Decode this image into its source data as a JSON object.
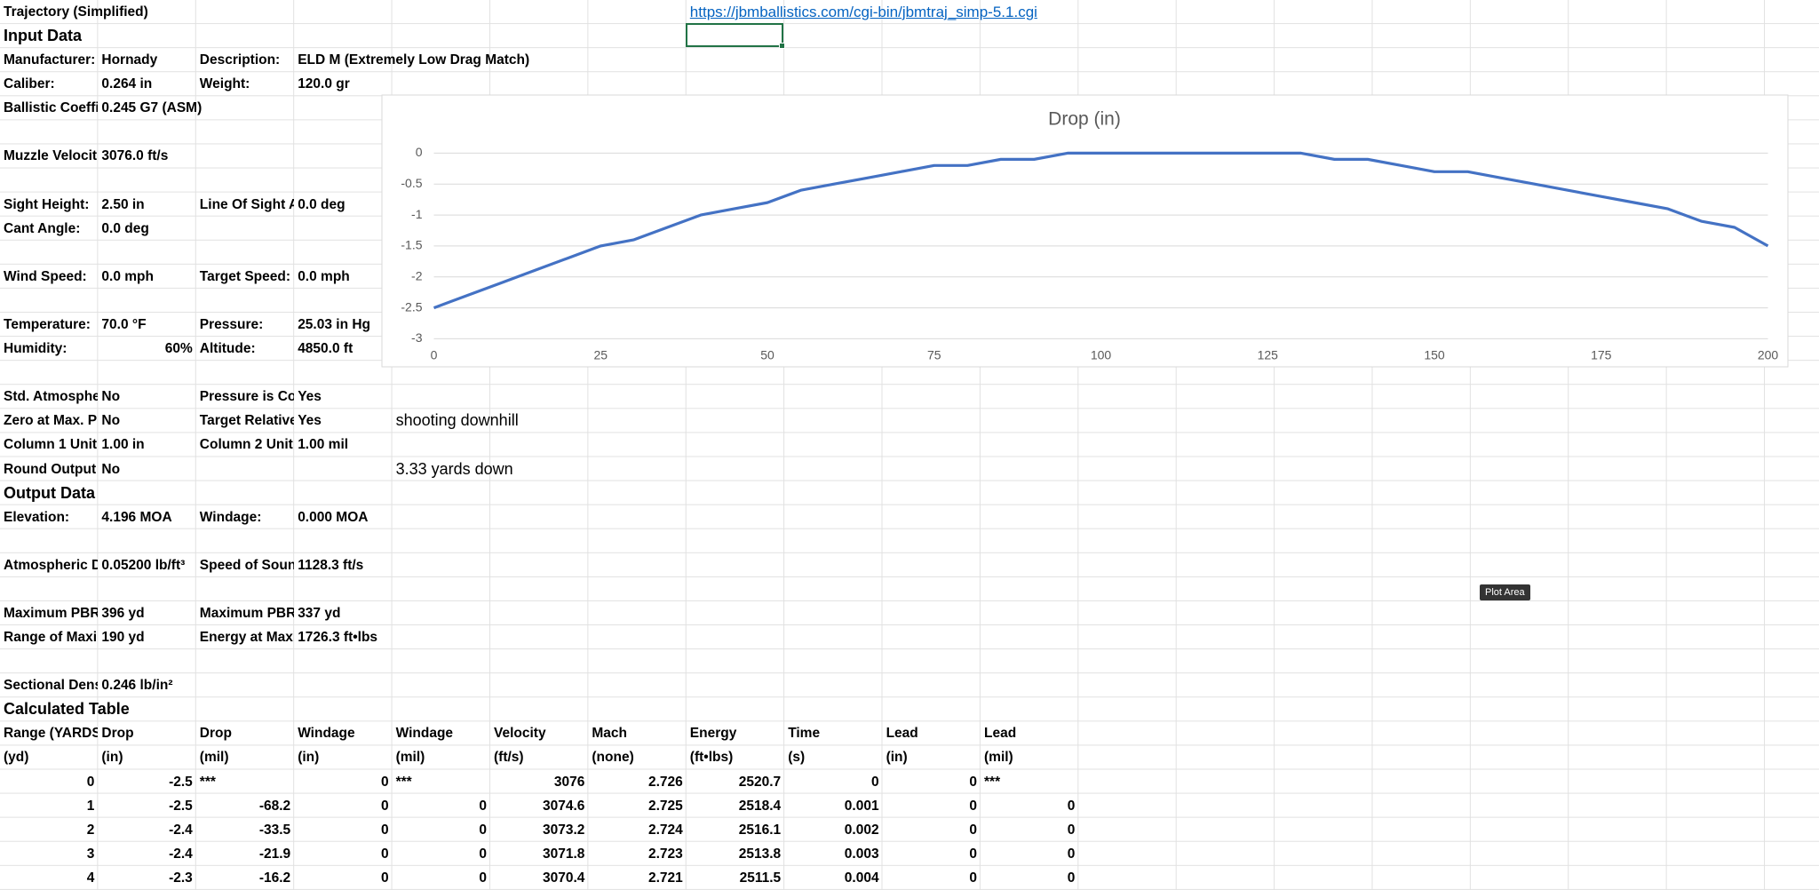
{
  "sheet": {
    "rows": [
      [
        "Trajectory (Simplified)",
        null,
        null,
        null,
        null,
        null,
        null,
        "https://jbmballistics.com/cgi-bin/jbmtraj_simp-5.1.cgi"
      ],
      [
        "Input Data"
      ],
      [
        "Manufacturer:",
        "Hornady",
        "Description:",
        "ELD M (Extremely Low Drag Match)"
      ],
      [
        "Caliber:",
        "0.264 in",
        "Weight:",
        "120.0 gr"
      ],
      [
        "Ballistic Coeffi",
        "0.245 G7 (ASM)"
      ],
      [],
      [
        "Muzzle Velocit",
        "3076.0 ft/s"
      ],
      [],
      [
        "Sight Height:",
        "2.50 in",
        "Line Of Sight A",
        "0.0 deg"
      ],
      [
        "Cant Angle:",
        "0.0 deg"
      ],
      [],
      [
        "Wind Speed:",
        "0.0 mph",
        "Target Speed:",
        "0.0 mph"
      ],
      [],
      [
        "Temperature:",
        "70.0 °F",
        "Pressure:",
        "25.03 in Hg"
      ],
      [
        "Humidity:",
        "60%",
        "Altitude:",
        "4850.0 ft"
      ],
      [],
      [
        "Std. Atmosphe",
        "No",
        "Pressure is Co",
        "Yes"
      ],
      [
        "Zero at Max. P",
        "No",
        "Target Relative",
        "Yes",
        "shooting downhill"
      ],
      [
        "Column 1 Unit",
        "1.00 in",
        "Column 2 Unit",
        "1.00 mil"
      ],
      [
        "Round Output",
        "No",
        null,
        null,
        "3.33 yards down"
      ],
      [
        "Output Data"
      ],
      [
        "Elevation:",
        "4.196 MOA",
        "Windage:",
        "0.000 MOA"
      ],
      [],
      [
        "Atmospheric D",
        "0.05200 lb/ft³",
        "Speed of Soun",
        "1128.3 ft/s"
      ],
      [],
      [
        "Maximum PBR",
        "396 yd",
        "Maximum PBR",
        "337 yd"
      ],
      [
        "Range of Maxi",
        "190 yd",
        "Energy at Maxi",
        "1726.3 ft•lbs"
      ],
      [],
      [
        "Sectional Dens",
        "0.246 lb/in²"
      ],
      [
        "Calculated Table"
      ],
      [
        "Range (YARDS",
        "Drop",
        "Drop",
        "Windage",
        "Windage",
        "Velocity",
        "Mach",
        "Energy",
        "Time",
        "Lead",
        "Lead"
      ],
      [
        "(yd)",
        "(in)",
        "(mil)",
        "(in)",
        "(mil)",
        "(ft/s)",
        "(none)",
        "(ft•lbs)",
        "(s)",
        "(in)",
        "(mil)"
      ],
      [
        0,
        -2.5,
        "***",
        0,
        "***",
        3076,
        2.726,
        2520.7,
        0,
        0,
        "***"
      ],
      [
        1,
        -2.5,
        -68.2,
        0,
        0,
        3074.6,
        2.725,
        2518.4,
        0.001,
        0,
        0
      ],
      [
        2,
        -2.4,
        -33.5,
        0,
        0,
        3073.2,
        2.724,
        2516.1,
        0.002,
        0,
        0
      ],
      [
        3,
        -2.4,
        -21.9,
        0,
        0,
        3071.8,
        2.723,
        2513.8,
        0.003,
        0,
        0
      ],
      [
        4,
        -2.3,
        -16.2,
        0,
        0,
        3070.4,
        2.721,
        2511.5,
        0.004,
        0,
        0
      ]
    ],
    "tooltip": "Plot Area"
  },
  "chart_data": {
    "type": "line",
    "title": "Drop (in)",
    "color": "#4472c4",
    "grid": true,
    "x": [
      0,
      5,
      10,
      15,
      20,
      25,
      30,
      35,
      40,
      45,
      50,
      55,
      60,
      65,
      70,
      75,
      80,
      85,
      90,
      95,
      100,
      105,
      110,
      115,
      120,
      125,
      130,
      135,
      140,
      145,
      150,
      155,
      160,
      165,
      170,
      175,
      180,
      185,
      190,
      195,
      200
    ],
    "values": [
      -2.5,
      -2.3,
      -2.1,
      -1.9,
      -1.7,
      -1.5,
      -1.4,
      -1.2,
      -1.0,
      -0.9,
      -0.8,
      -0.6,
      -0.5,
      -0.4,
      -0.3,
      -0.2,
      -0.2,
      -0.1,
      -0.1,
      0,
      0,
      0,
      0,
      0,
      0,
      0,
      0,
      -0.1,
      -0.1,
      -0.2,
      -0.3,
      -0.3,
      -0.4,
      -0.5,
      -0.6,
      -0.7,
      -0.8,
      -0.9,
      -1.1,
      -1.2,
      -1.5
    ],
    "xlim": [
      0,
      200
    ],
    "ylim": [
      -3,
      0
    ],
    "xticks": [
      0,
      25,
      50,
      75,
      100,
      125,
      150,
      175,
      200
    ],
    "yticks": [
      0,
      -0.5,
      -1,
      -1.5,
      -2,
      -2.5,
      -3
    ]
  }
}
